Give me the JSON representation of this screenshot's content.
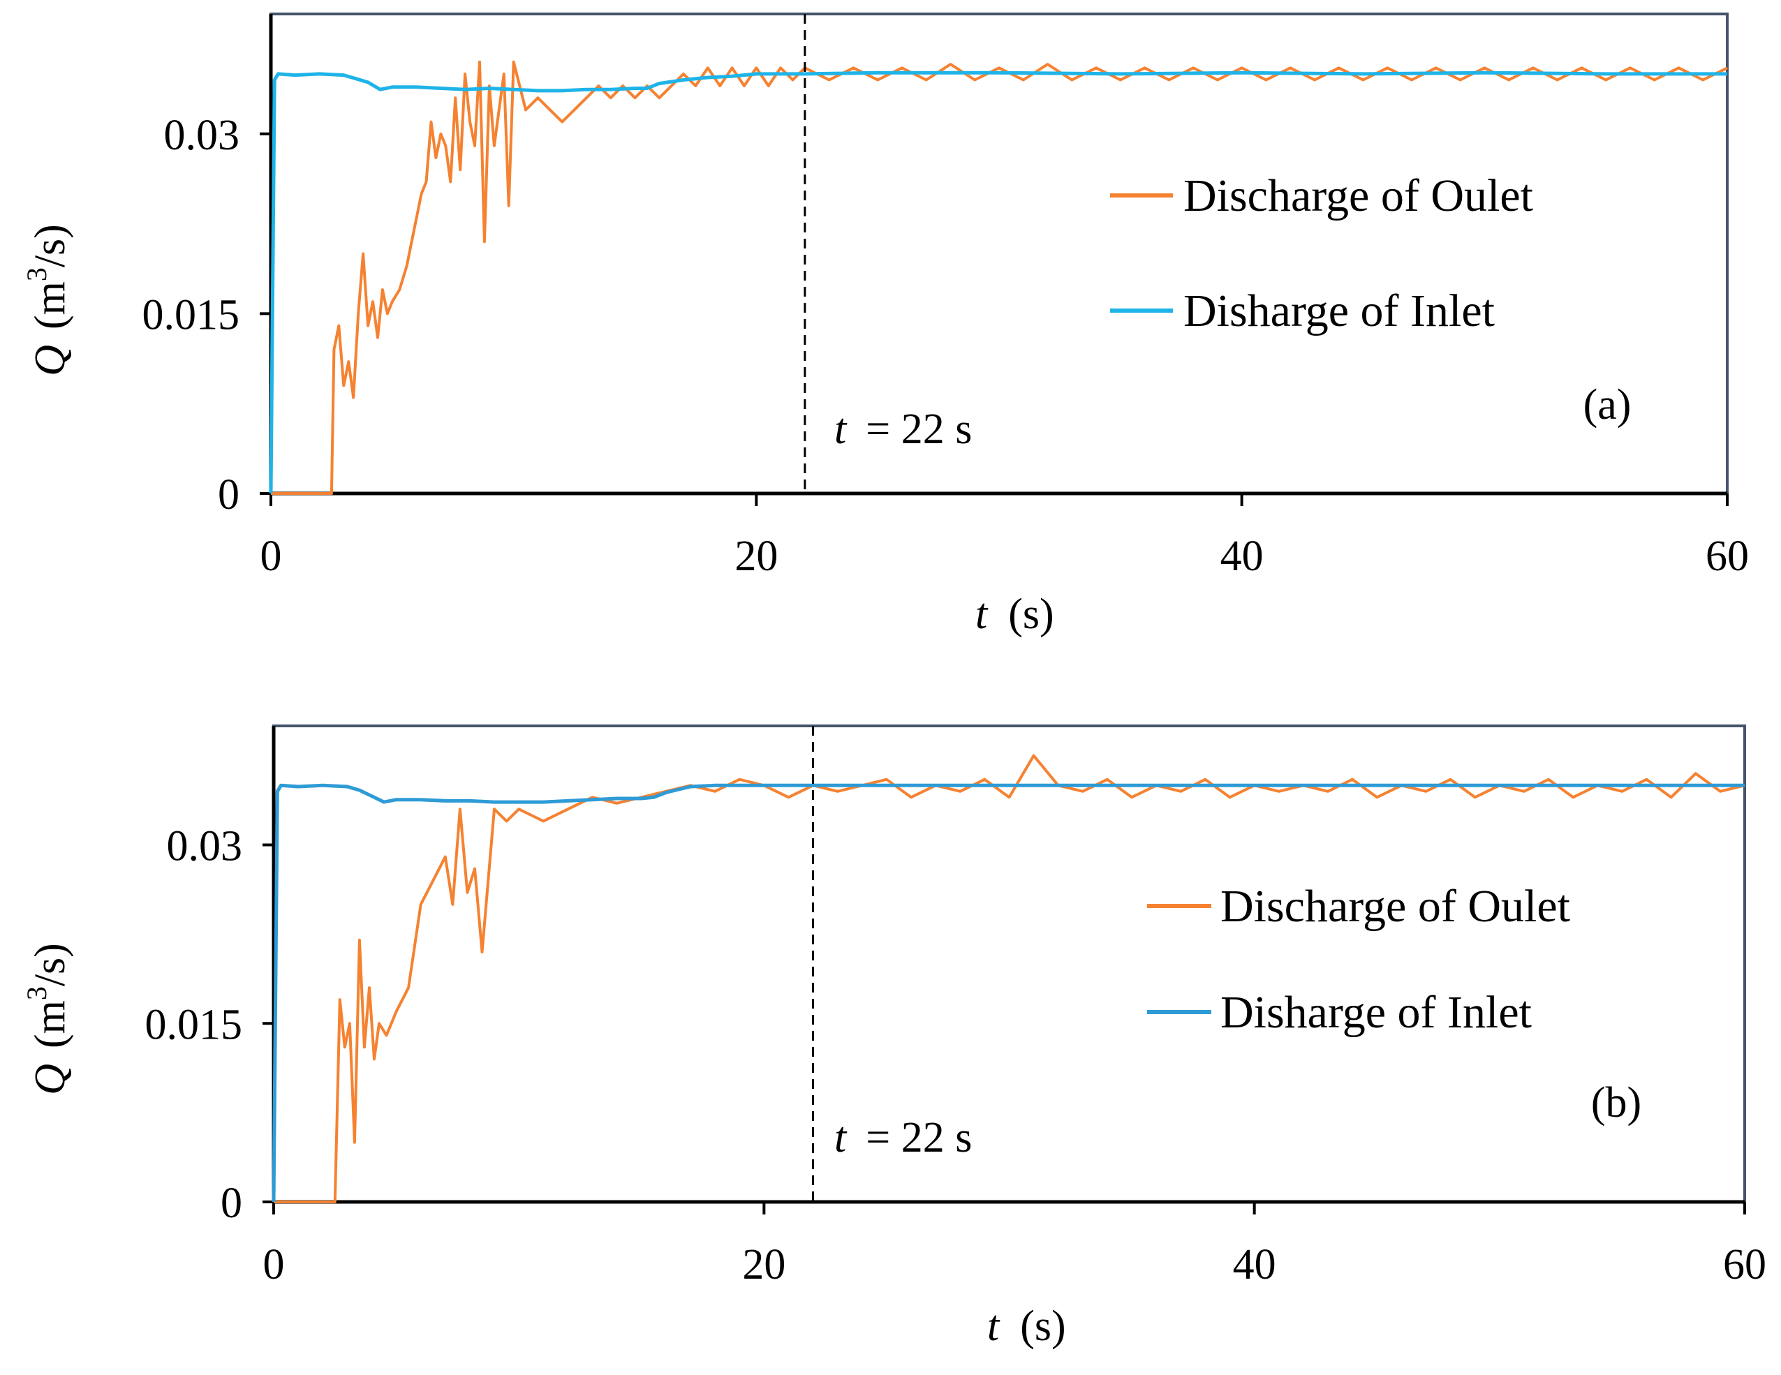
{
  "chart_data": [
    {
      "panel": "a",
      "type": "line",
      "panel_label": "(a)",
      "xlabel": {
        "var": "t",
        "unit": "(s)"
      },
      "ylabel": {
        "var": "Q",
        "unit_prefix": "(m",
        "unit_sup": "3",
        "unit_suffix": "/s)"
      },
      "xlim": [
        0,
        60
      ],
      "ylim": [
        0,
        0.04
      ],
      "xticks": [
        0,
        20,
        40,
        60
      ],
      "xtick_labels": [
        "0",
        "20",
        "40",
        "60"
      ],
      "yticks": [
        0,
        0.015,
        0.03
      ],
      "ytick_labels": [
        "0",
        "0.015",
        "0.03"
      ],
      "grid": false,
      "legend_position": "right",
      "vline": {
        "x": 22,
        "style": "dashed",
        "label_var": "t",
        "label_rest": "= 22 s"
      },
      "series": [
        {
          "name": "Discharge of Oulet",
          "color": "#F58231",
          "x": [
            0,
            2.5,
            2.6,
            2.8,
            3.0,
            3.2,
            3.4,
            3.6,
            3.8,
            4.0,
            4.2,
            4.4,
            4.6,
            4.8,
            5.0,
            5.3,
            5.6,
            5.9,
            6.2,
            6.4,
            6.6,
            6.8,
            7.0,
            7.2,
            7.4,
            7.6,
            7.8,
            8.0,
            8.2,
            8.4,
            8.6,
            8.8,
            9.0,
            9.2,
            9.4,
            9.6,
            9.8,
            10.0,
            10.5,
            11.0,
            11.5,
            12.0,
            12.5,
            13.0,
            13.5,
            14.0,
            14.5,
            15.0,
            15.5,
            16.0,
            16.5,
            17.0,
            17.5,
            18.0,
            18.5,
            19.0,
            19.5,
            20.0,
            20.5,
            21.0,
            21.5,
            22.0,
            23,
            24,
            25,
            26,
            27,
            28,
            29,
            30,
            31,
            32,
            33,
            34,
            35,
            36,
            37,
            38,
            39,
            40,
            41,
            42,
            43,
            44,
            45,
            46,
            47,
            48,
            49,
            50,
            51,
            52,
            53,
            54,
            55,
            56,
            57,
            58,
            59,
            60
          ],
          "values": [
            0,
            0,
            0.012,
            0.014,
            0.009,
            0.011,
            0.008,
            0.015,
            0.02,
            0.014,
            0.016,
            0.013,
            0.017,
            0.015,
            0.016,
            0.017,
            0.019,
            0.022,
            0.025,
            0.026,
            0.031,
            0.028,
            0.03,
            0.029,
            0.026,
            0.033,
            0.027,
            0.035,
            0.031,
            0.029,
            0.036,
            0.021,
            0.034,
            0.029,
            0.032,
            0.035,
            0.024,
            0.036,
            0.032,
            0.033,
            0.032,
            0.031,
            0.032,
            0.033,
            0.034,
            0.033,
            0.034,
            0.033,
            0.034,
            0.033,
            0.034,
            0.035,
            0.034,
            0.0355,
            0.034,
            0.0355,
            0.034,
            0.0355,
            0.034,
            0.0355,
            0.0345,
            0.0355,
            0.0345,
            0.0355,
            0.0345,
            0.0355,
            0.0345,
            0.0358,
            0.0345,
            0.0355,
            0.0345,
            0.0358,
            0.0345,
            0.0355,
            0.0345,
            0.0355,
            0.0345,
            0.0355,
            0.0345,
            0.0355,
            0.0345,
            0.0355,
            0.0345,
            0.0355,
            0.0345,
            0.0355,
            0.0345,
            0.0355,
            0.0345,
            0.0355,
            0.0345,
            0.0355,
            0.0345,
            0.0355,
            0.0345,
            0.0355,
            0.0345,
            0.0355,
            0.0345,
            0.0355
          ]
        },
        {
          "name": "Disharge of Inlet",
          "color": "#1FB4E8",
          "x": [
            0,
            0.15,
            0.3,
            1,
            2,
            3,
            3.5,
            4.0,
            4.5,
            5,
            6,
            7,
            8,
            9,
            10,
            11,
            12,
            13,
            14,
            15,
            15.5,
            16,
            17,
            18,
            19,
            20,
            21,
            22,
            25,
            30,
            35,
            40,
            45,
            50,
            55,
            60
          ],
          "values": [
            0,
            0.0345,
            0.035,
            0.0349,
            0.035,
            0.0349,
            0.0346,
            0.0343,
            0.0337,
            0.0339,
            0.0339,
            0.0338,
            0.0337,
            0.0338,
            0.0337,
            0.0336,
            0.0336,
            0.0337,
            0.0337,
            0.0338,
            0.0338,
            0.0342,
            0.0345,
            0.0347,
            0.0348,
            0.035,
            0.035,
            0.035,
            0.0351,
            0.0351,
            0.035,
            0.0351,
            0.035,
            0.0351,
            0.035,
            0.035
          ]
        }
      ]
    },
    {
      "panel": "b",
      "type": "line",
      "panel_label": "(b)",
      "xlabel": {
        "var": "t",
        "unit": "(s)"
      },
      "ylabel": {
        "var": "Q",
        "unit_prefix": "(m",
        "unit_sup": "3",
        "unit_suffix": "/s)"
      },
      "xlim": [
        0,
        60
      ],
      "ylim": [
        0,
        0.04
      ],
      "xticks": [
        0,
        20,
        40,
        60
      ],
      "xtick_labels": [
        "0",
        "20",
        "40",
        "60"
      ],
      "yticks": [
        0,
        0.015,
        0.03
      ],
      "ytick_labels": [
        "0",
        "0.015",
        "0.03"
      ],
      "grid": false,
      "legend_position": "right",
      "vline": {
        "x": 22,
        "style": "dashed",
        "label_var": "t",
        "label_rest": "= 22 s"
      },
      "series": [
        {
          "name": "Discharge of Oulet",
          "color": "#F58231",
          "x": [
            0,
            2.5,
            2.7,
            2.9,
            3.1,
            3.3,
            3.5,
            3.7,
            3.9,
            4.1,
            4.3,
            4.6,
            5.0,
            5.5,
            6.0,
            6.5,
            7.0,
            7.3,
            7.6,
            7.9,
            8.2,
            8.5,
            9.0,
            9.5,
            10,
            11,
            12,
            13,
            14,
            15,
            16,
            17,
            18,
            19,
            20,
            21,
            22,
            23,
            24,
            25,
            26,
            27,
            28,
            29,
            30,
            31,
            32,
            33,
            34,
            35,
            36,
            37,
            38,
            39,
            40,
            41,
            42,
            43,
            44,
            45,
            46,
            47,
            48,
            49,
            50,
            51,
            52,
            53,
            54,
            55,
            56,
            57,
            58,
            59,
            60
          ],
          "values": [
            0,
            0,
            0.017,
            0.013,
            0.015,
            0.005,
            0.022,
            0.013,
            0.018,
            0.012,
            0.015,
            0.014,
            0.016,
            0.018,
            0.025,
            0.027,
            0.029,
            0.025,
            0.033,
            0.026,
            0.028,
            0.021,
            0.033,
            0.032,
            0.033,
            0.032,
            0.033,
            0.034,
            0.0335,
            0.034,
            0.0345,
            0.035,
            0.0345,
            0.0355,
            0.035,
            0.034,
            0.035,
            0.0345,
            0.035,
            0.0355,
            0.034,
            0.035,
            0.0345,
            0.0355,
            0.034,
            0.0375,
            0.035,
            0.0345,
            0.0355,
            0.034,
            0.035,
            0.0345,
            0.0355,
            0.034,
            0.035,
            0.0345,
            0.035,
            0.0345,
            0.0355,
            0.034,
            0.035,
            0.0345,
            0.0355,
            0.034,
            0.035,
            0.0345,
            0.0355,
            0.034,
            0.035,
            0.0345,
            0.0355,
            0.034,
            0.036,
            0.0345,
            0.035
          ]
        },
        {
          "name": "Disharge of Inlet",
          "color": "#2E9BD6",
          "x": [
            0,
            0.15,
            0.3,
            1,
            2,
            3,
            3.5,
            4.0,
            4.5,
            5,
            6,
            7,
            8,
            9,
            10,
            11,
            12,
            13,
            14,
            15,
            15.5,
            16,
            17,
            18,
            19,
            20,
            21,
            22,
            25,
            30,
            35,
            40,
            45,
            50,
            55,
            60
          ],
          "values": [
            0,
            0.0345,
            0.035,
            0.0349,
            0.035,
            0.0349,
            0.0346,
            0.0341,
            0.0336,
            0.0338,
            0.0338,
            0.0337,
            0.0337,
            0.0336,
            0.0336,
            0.0336,
            0.0337,
            0.0338,
            0.0339,
            0.0339,
            0.034,
            0.0344,
            0.0349,
            0.035,
            0.035,
            0.035,
            0.035,
            0.035,
            0.035,
            0.035,
            0.035,
            0.035,
            0.035,
            0.035,
            0.035,
            0.035
          ]
        }
      ]
    }
  ]
}
